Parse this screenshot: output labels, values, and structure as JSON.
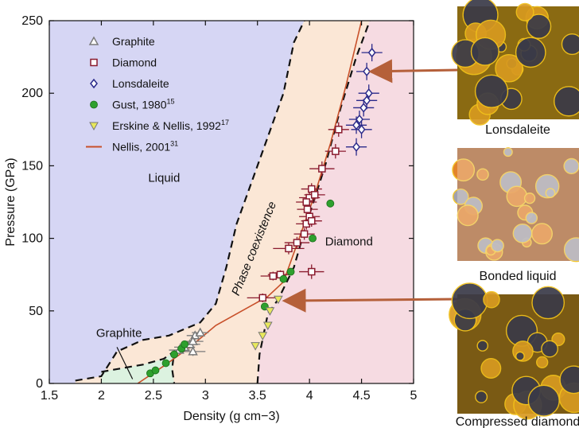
{
  "chart_data": {
    "type": "scatter",
    "xlabel": "Density (g cm−3)",
    "ylabel": "Pressure (GPa)",
    "xlim": [
      1.5,
      5
    ],
    "ylim": [
      0,
      250
    ],
    "x_ticks": [
      "1.5",
      "2",
      "2.5",
      "3",
      "3.5",
      "4",
      "4.5",
      "5"
    ],
    "y_ticks": [
      "0",
      "50",
      "100",
      "150",
      "200",
      "250"
    ],
    "grid": false,
    "legend_position": "top-left",
    "colors": {
      "liquid_region": "#d6d6f4",
      "coexistence_region": "#fbe7d6",
      "diamond_region": "#f6dbe2",
      "graphite_region": "#dcf2e0",
      "boundary": "#111111",
      "nellis_line": "#c8502a",
      "arrow": "#b5603a"
    },
    "region_labels": [
      {
        "text": "Liquid",
        "x": 2.45,
        "y": 139
      },
      {
        "text": "Diamond",
        "x": 4.15,
        "y": 95
      },
      {
        "text": "Graphite",
        "x": 1.95,
        "y": 32
      },
      {
        "text": "Phase coexistence",
        "x": 3.32,
        "y": 60,
        "rotate": -68
      }
    ],
    "boundaries": [
      {
        "name": "liquid-boundary",
        "points": [
          [
            1.75,
            2
          ],
          [
            2.0,
            5
          ],
          [
            2.15,
            22
          ],
          [
            2.4,
            30
          ],
          [
            2.65,
            33
          ],
          [
            2.95,
            42
          ],
          [
            3.1,
            55
          ],
          [
            3.2,
            80
          ],
          [
            3.3,
            110
          ],
          [
            3.45,
            140
          ],
          [
            3.6,
            170
          ],
          [
            3.75,
            200
          ],
          [
            3.85,
            235
          ],
          [
            3.95,
            250
          ]
        ]
      },
      {
        "name": "diamond-boundary",
        "points": [
          [
            3.5,
            0
          ],
          [
            3.52,
            20
          ],
          [
            3.6,
            48
          ],
          [
            3.7,
            58
          ],
          [
            3.85,
            80
          ],
          [
            3.97,
            110
          ],
          [
            4.15,
            150
          ],
          [
            4.3,
            190
          ],
          [
            4.45,
            225
          ],
          [
            4.58,
            250
          ]
        ]
      },
      {
        "name": "graphite-boundary",
        "points": [
          [
            2.0,
            8
          ],
          [
            2.4,
            13
          ],
          [
            2.6,
            17
          ],
          [
            2.7,
            22
          ],
          [
            2.68,
            10
          ],
          [
            2.7,
            0
          ]
        ]
      }
    ],
    "region_fills": [
      {
        "name": "coexistence-region",
        "color": "#fbe7d6",
        "points": [
          [
            1.75,
            2
          ],
          [
            2.0,
            5
          ],
          [
            2.15,
            22
          ],
          [
            2.4,
            30
          ],
          [
            2.65,
            33
          ],
          [
            2.95,
            42
          ],
          [
            3.1,
            55
          ],
          [
            3.2,
            80
          ],
          [
            3.3,
            110
          ],
          [
            3.45,
            140
          ],
          [
            3.6,
            170
          ],
          [
            3.75,
            200
          ],
          [
            3.85,
            235
          ],
          [
            3.95,
            250
          ],
          [
            4.58,
            250
          ],
          [
            4.45,
            225
          ],
          [
            4.3,
            190
          ],
          [
            4.15,
            150
          ],
          [
            3.97,
            110
          ],
          [
            3.85,
            80
          ],
          [
            3.7,
            58
          ],
          [
            3.6,
            48
          ],
          [
            3.52,
            20
          ],
          [
            3.5,
            0
          ],
          [
            1.75,
            0
          ]
        ]
      },
      {
        "name": "diamond-region",
        "color": "#f6dbe2",
        "points": [
          [
            3.5,
            0
          ],
          [
            3.52,
            20
          ],
          [
            3.6,
            48
          ],
          [
            3.7,
            58
          ],
          [
            3.85,
            80
          ],
          [
            3.97,
            110
          ],
          [
            4.15,
            150
          ],
          [
            4.3,
            190
          ],
          [
            4.45,
            225
          ],
          [
            4.58,
            250
          ],
          [
            5,
            250
          ],
          [
            5,
            0
          ]
        ]
      },
      {
        "name": "graphite-region",
        "color": "#dcf2e0",
        "points": [
          [
            2.0,
            0
          ],
          [
            2.0,
            8
          ],
          [
            2.4,
            13
          ],
          [
            2.6,
            17
          ],
          [
            2.7,
            22
          ],
          [
            2.68,
            10
          ],
          [
            2.7,
            0
          ]
        ]
      }
    ],
    "legend": [
      {
        "marker": "triangle",
        "label": "Graphite",
        "sup": ""
      },
      {
        "marker": "square",
        "label": "Diamond",
        "sup": ""
      },
      {
        "marker": "diamond",
        "label": "Lonsdaleite",
        "sup": ""
      },
      {
        "marker": "circle",
        "label": "Gust, 1980",
        "sup": "15"
      },
      {
        "marker": "triangle-down",
        "label": "Erskine & Nellis, 1992",
        "sup": "17"
      },
      {
        "marker": "line",
        "label": "Nellis, 2001",
        "sup": "31"
      }
    ],
    "series": [
      {
        "name": "Graphite",
        "marker": "triangle",
        "color": "#7a7a7a",
        "points": [
          {
            "x": 2.75,
            "y": 23,
            "xerr": 0.1,
            "yerr": 3
          },
          {
            "x": 2.8,
            "y": 25,
            "xerr": 0.1,
            "yerr": 3
          },
          {
            "x": 2.85,
            "y": 27,
            "xerr": 0.1,
            "yerr": 3
          },
          {
            "x": 2.88,
            "y": 22,
            "xerr": 0.12,
            "yerr": 3
          },
          {
            "x": 2.9,
            "y": 33,
            "xerr": 0.08,
            "yerr": 3
          },
          {
            "x": 2.95,
            "y": 35,
            "xerr": 0.08,
            "yerr": 3
          },
          {
            "x": 2.88,
            "y": 29,
            "xerr": 0.1,
            "yerr": 3
          }
        ]
      },
      {
        "name": "Diamond",
        "marker": "square",
        "color": "#8a1b2e",
        "points": [
          {
            "x": 3.55,
            "y": 59,
            "xerr": 0.15,
            "yerr": 3
          },
          {
            "x": 3.65,
            "y": 74,
            "xerr": 0.12,
            "yerr": 3
          },
          {
            "x": 3.72,
            "y": 75,
            "xerr": 0.12,
            "yerr": 3
          },
          {
            "x": 3.8,
            "y": 93,
            "xerr": 0.15,
            "yerr": 4
          },
          {
            "x": 3.88,
            "y": 97,
            "xerr": 0.12,
            "yerr": 4
          },
          {
            "x": 3.95,
            "y": 103,
            "xerr": 0.1,
            "yerr": 4
          },
          {
            "x": 3.97,
            "y": 110,
            "xerr": 0.1,
            "yerr": 4
          },
          {
            "x": 4.0,
            "y": 115,
            "xerr": 0.1,
            "yerr": 4
          },
          {
            "x": 4.02,
            "y": 112,
            "xerr": 0.1,
            "yerr": 4
          },
          {
            "x": 3.98,
            "y": 120,
            "xerr": 0.1,
            "yerr": 4
          },
          {
            "x": 4.0,
            "y": 128,
            "xerr": 0.1,
            "yerr": 4
          },
          {
            "x": 4.02,
            "y": 134,
            "xerr": 0.1,
            "yerr": 4
          },
          {
            "x": 3.97,
            "y": 125,
            "xerr": 0.1,
            "yerr": 4
          },
          {
            "x": 4.05,
            "y": 130,
            "xerr": 0.1,
            "yerr": 4
          },
          {
            "x": 4.12,
            "y": 148,
            "xerr": 0.12,
            "yerr": 5
          },
          {
            "x": 4.25,
            "y": 160,
            "xerr": 0.1,
            "yerr": 5
          },
          {
            "x": 4.28,
            "y": 175,
            "xerr": 0.1,
            "yerr": 5
          },
          {
            "x": 4.02,
            "y": 77,
            "xerr": 0.12,
            "yerr": 5
          }
        ]
      },
      {
        "name": "Lonsdaleite",
        "marker": "diamond",
        "color": "#2a2a8a",
        "points": [
          {
            "x": 4.45,
            "y": 163,
            "xerr": 0.1,
            "yerr": 6
          },
          {
            "x": 4.45,
            "y": 178,
            "xerr": 0.1,
            "yerr": 6
          },
          {
            "x": 4.48,
            "y": 182,
            "xerr": 0.1,
            "yerr": 6
          },
          {
            "x": 4.52,
            "y": 190,
            "xerr": 0.1,
            "yerr": 6
          },
          {
            "x": 4.55,
            "y": 195,
            "xerr": 0.1,
            "yerr": 6
          },
          {
            "x": 4.57,
            "y": 200,
            "xerr": 0.1,
            "yerr": 6
          },
          {
            "x": 4.55,
            "y": 215,
            "xerr": 0.1,
            "yerr": 6
          },
          {
            "x": 4.6,
            "y": 228,
            "xerr": 0.1,
            "yerr": 6
          },
          {
            "x": 4.5,
            "y": 175,
            "xerr": 0.1,
            "yerr": 6
          }
        ]
      },
      {
        "name": "Gust, 1980",
        "marker": "circle",
        "color": "#2ea02e",
        "points": [
          {
            "x": 2.47,
            "y": 7
          },
          {
            "x": 2.52,
            "y": 9
          },
          {
            "x": 2.62,
            "y": 14
          },
          {
            "x": 2.7,
            "y": 20
          },
          {
            "x": 2.77,
            "y": 24
          },
          {
            "x": 2.8,
            "y": 27
          },
          {
            "x": 3.57,
            "y": 53
          },
          {
            "x": 3.75,
            "y": 72
          },
          {
            "x": 3.82,
            "y": 77
          },
          {
            "x": 4.03,
            "y": 100
          },
          {
            "x": 4.2,
            "y": 124
          }
        ]
      },
      {
        "name": "Erskine & Nellis, 1992",
        "marker": "triangle-down",
        "color": "#c8c81e",
        "points": [
          {
            "x": 3.48,
            "y": 26
          },
          {
            "x": 3.55,
            "y": 33
          },
          {
            "x": 3.6,
            "y": 40
          },
          {
            "x": 3.62,
            "y": 50
          },
          {
            "x": 3.7,
            "y": 58
          }
        ]
      }
    ],
    "nellis_line": [
      [
        2.35,
        0
      ],
      [
        2.6,
        12
      ],
      [
        2.85,
        25
      ],
      [
        3.1,
        40
      ],
      [
        3.4,
        52
      ],
      [
        3.6,
        60
      ],
      [
        3.75,
        70
      ],
      [
        3.9,
        100
      ],
      [
        4.05,
        130
      ],
      [
        4.2,
        165
      ],
      [
        4.35,
        205
      ],
      [
        4.5,
        250
      ]
    ],
    "arrows": [
      {
        "name": "arrow-lonsdaleite",
        "from": [
          575,
          88
        ],
        "to_data": [
          4.55,
          215
        ]
      },
      {
        "name": "arrow-compressed",
        "from": [
          575,
          376
        ],
        "to_data": [
          3.72,
          57
        ]
      }
    ]
  },
  "side_panels": [
    {
      "caption": "Lonsdaleite",
      "tone": "#8a6a12"
    },
    {
      "caption": "Bonded liquid",
      "tone": "#9a4e16"
    },
    {
      "caption": "Compressed diamond",
      "tone": "#7a5a14"
    }
  ]
}
